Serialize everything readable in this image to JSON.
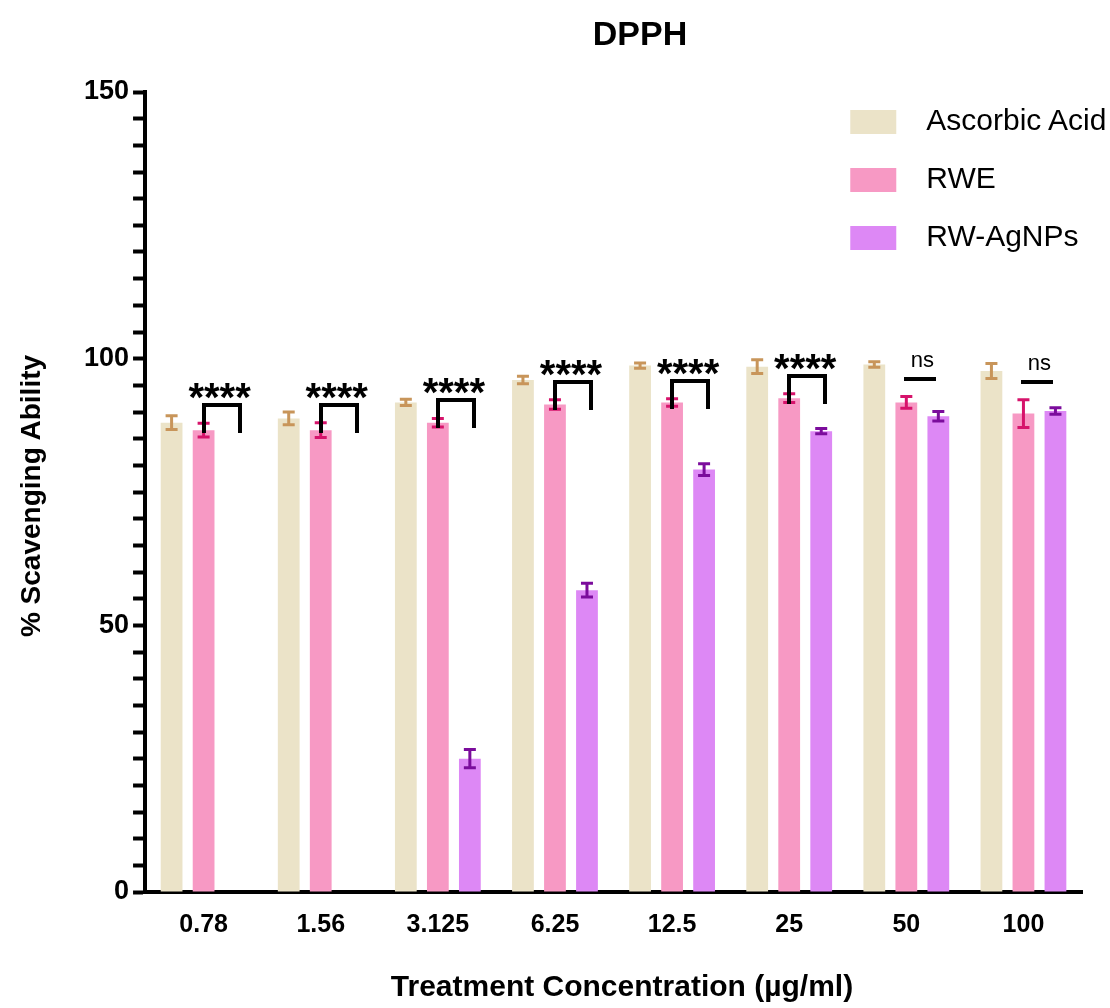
{
  "chart_data": {
    "type": "bar",
    "title": "DPPH",
    "xlabel": "Treatment Concentration (µg/ml)",
    "ylabel": "% Scavenging Ability",
    "categories": [
      "0.78",
      "1.56",
      "3.125",
      "6.25",
      "12.5",
      "25",
      "50",
      "100"
    ],
    "series": [
      {
        "name": "Ascorbic Acid",
        "color": "#ebe3c8",
        "values": [
          88,
          88.8,
          91.8,
          96,
          98.7,
          98.5,
          98.9,
          97.7
        ],
        "errors": [
          1.3,
          1.2,
          0.6,
          0.7,
          0.5,
          1.3,
          0.5,
          1.4
        ]
      },
      {
        "name": "RWE",
        "color": "#f799c4",
        "values": [
          86.6,
          86.6,
          88,
          91.4,
          91.8,
          92.6,
          91.8,
          89.7
        ],
        "errors": [
          1.3,
          1.4,
          0.8,
          0.9,
          0.7,
          0.8,
          1.1,
          2.6
        ]
      },
      {
        "name": "RW-AgNPs",
        "color": "#dd88f5",
        "values": [
          null,
          null,
          25,
          56.6,
          79.2,
          86.4,
          89.2,
          90.2
        ],
        "errors": [
          null,
          null,
          1.7,
          1.3,
          1.1,
          0.5,
          0.9,
          0.6
        ]
      }
    ],
    "annotations": [
      "****",
      "****",
      "****",
      "****",
      "****",
      "****",
      "ns",
      "ns"
    ],
    "ylim": [
      0,
      150
    ],
    "yticks": [
      0,
      {
        "value": 5,
        "label": null
      },
      {
        "value": 10,
        "label": null
      },
      {
        "value": 15,
        "label": null
      },
      {
        "value": 20,
        "label": null
      },
      {
        "value": 25,
        "label": null
      },
      {
        "value": 30,
        "label": null
      },
      {
        "value": 35,
        "label": null
      },
      {
        "value": 40,
        "label": null
      },
      {
        "value": 45,
        "label": null
      },
      50,
      {
        "value": 55,
        "label": null
      },
      {
        "value": 60,
        "label": null
      },
      {
        "value": 65,
        "label": null
      },
      {
        "value": 70,
        "label": null
      },
      {
        "value": 75,
        "label": null
      },
      {
        "value": 80,
        "label": null
      },
      {
        "value": 85,
        "label": null
      },
      {
        "value": 90,
        "label": null
      },
      {
        "value": 95,
        "label": null
      },
      100,
      {
        "value": 105,
        "label": null
      },
      {
        "value": 110,
        "label": null
      },
      {
        "value": 115,
        "label": null
      },
      {
        "value": 120,
        "label": null
      },
      {
        "value": 125,
        "label": null
      },
      {
        "value": 130,
        "label": null
      },
      {
        "value": 135,
        "label": null
      },
      {
        "value": 140,
        "label": null
      },
      {
        "value": 145,
        "label": null
      },
      150
    ],
    "grid": false,
    "legend": "top right"
  }
}
